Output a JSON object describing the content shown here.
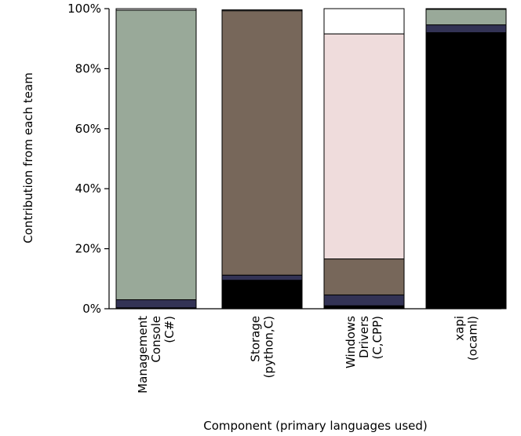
{
  "chart_data": {
    "type": "bar",
    "stacked": true,
    "title": "",
    "xlabel": "Component (primary languages used)",
    "ylabel": "Contribution from each team",
    "ylim": [
      0,
      100
    ],
    "yticks": [
      "0%",
      "20%",
      "40%",
      "60%",
      "80%",
      "100%"
    ],
    "categories": [
      [
        "Management",
        "Console",
        "(C#)"
      ],
      [
        "Storage",
        "(python,C)"
      ],
      [
        "Windows",
        "Drivers",
        "(C,CPP)"
      ],
      [
        "xapi",
        "(ocaml)"
      ]
    ],
    "series": [
      {
        "color": "#000000",
        "values": [
          0.3,
          9.5,
          1.0,
          92.0
        ]
      },
      {
        "color": "#333355",
        "values": [
          2.7,
          1.7,
          3.6,
          2.6
        ]
      },
      {
        "color": "#77675a",
        "values": [
          0.0,
          88.1,
          12.0,
          0.0
        ]
      },
      {
        "color": "#efdcdc",
        "values": [
          0.0,
          0.0,
          75.0,
          0.0
        ]
      },
      {
        "color": "#99a999",
        "values": [
          96.5,
          0.0,
          0.0,
          5.2
        ]
      },
      {
        "color": "#ffffff",
        "values": [
          0.5,
          0.3,
          8.4,
          0.2
        ]
      }
    ],
    "grid": false,
    "legend": "none"
  }
}
